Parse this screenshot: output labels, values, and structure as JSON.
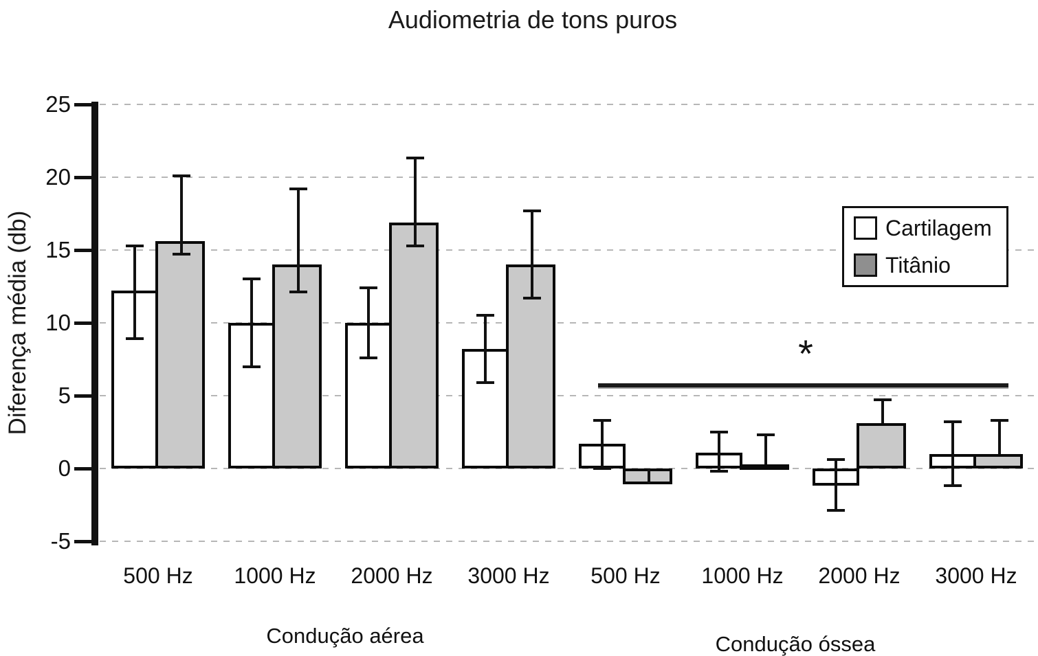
{
  "title": "Audiometria de tons puros",
  "colors": {
    "bar_fill_cartilagem": "#ffffff",
    "bar_fill_titanio": "#c9c9c9",
    "legend_swatch_titanio": "#8f8f8f",
    "outline": "#0a0a0a",
    "gridline": "#b6b6b6"
  },
  "chart_data": {
    "type": "bar",
    "title": "Audiometria de tons puros",
    "xlabel": "",
    "ylabel": "Diferença média (db)",
    "ylim": [
      -5,
      25
    ],
    "yticks": [
      25,
      20,
      15,
      10,
      5,
      0,
      -5
    ],
    "grid": "horizontal-dashed",
    "legend_position": "upper-right",
    "categories": [
      "500 Hz",
      "1000 Hz",
      "2000 Hz",
      "3000 Hz",
      "500 Hz",
      "1000 Hz",
      "2000 Hz",
      "3000 Hz"
    ],
    "sections": [
      {
        "label": "Condução aérea",
        "categories_span": [
          0,
          3
        ]
      },
      {
        "label": "Condução óssea",
        "categories_span": [
          4,
          7
        ]
      }
    ],
    "series": [
      {
        "name": "Cartilagem",
        "fill": "#ffffff",
        "legend_fill": "#ffffff",
        "values": [
          12.2,
          10.0,
          10.0,
          8.2,
          1.7,
          1.1,
          -1.2,
          1.0
        ],
        "err_low": [
          8.9,
          7.0,
          7.6,
          5.9,
          0.0,
          -0.2,
          -2.9,
          -1.2
        ],
        "err_high": [
          15.3,
          13.0,
          12.4,
          10.5,
          3.3,
          2.5,
          0.6,
          3.2
        ],
        "cap_low": [
          true,
          true,
          true,
          true,
          true,
          true,
          true,
          true
        ],
        "cap_high": [
          true,
          true,
          true,
          true,
          true,
          true,
          true,
          true
        ]
      },
      {
        "name": "Titânio",
        "fill": "#c9c9c9",
        "legend_fill": "#8f8f8f",
        "values": [
          15.6,
          14.0,
          16.9,
          14.0,
          -1.1,
          0.3,
          3.1,
          1.0
        ],
        "err_low": [
          14.7,
          12.1,
          15.3,
          11.7,
          -1.1,
          0.3,
          3.1,
          1.0
        ],
        "err_high": [
          20.1,
          19.2,
          21.3,
          17.7,
          0.0,
          2.3,
          4.7,
          3.3
        ],
        "cap_low": [
          true,
          true,
          true,
          true,
          false,
          false,
          false,
          false
        ],
        "cap_high": [
          true,
          true,
          true,
          true,
          false,
          true,
          true,
          true
        ]
      }
    ],
    "significance": {
      "symbol": "*",
      "section": "Condução óssea",
      "span_categories": [
        4,
        7
      ],
      "line_y_db": 5.8
    }
  }
}
